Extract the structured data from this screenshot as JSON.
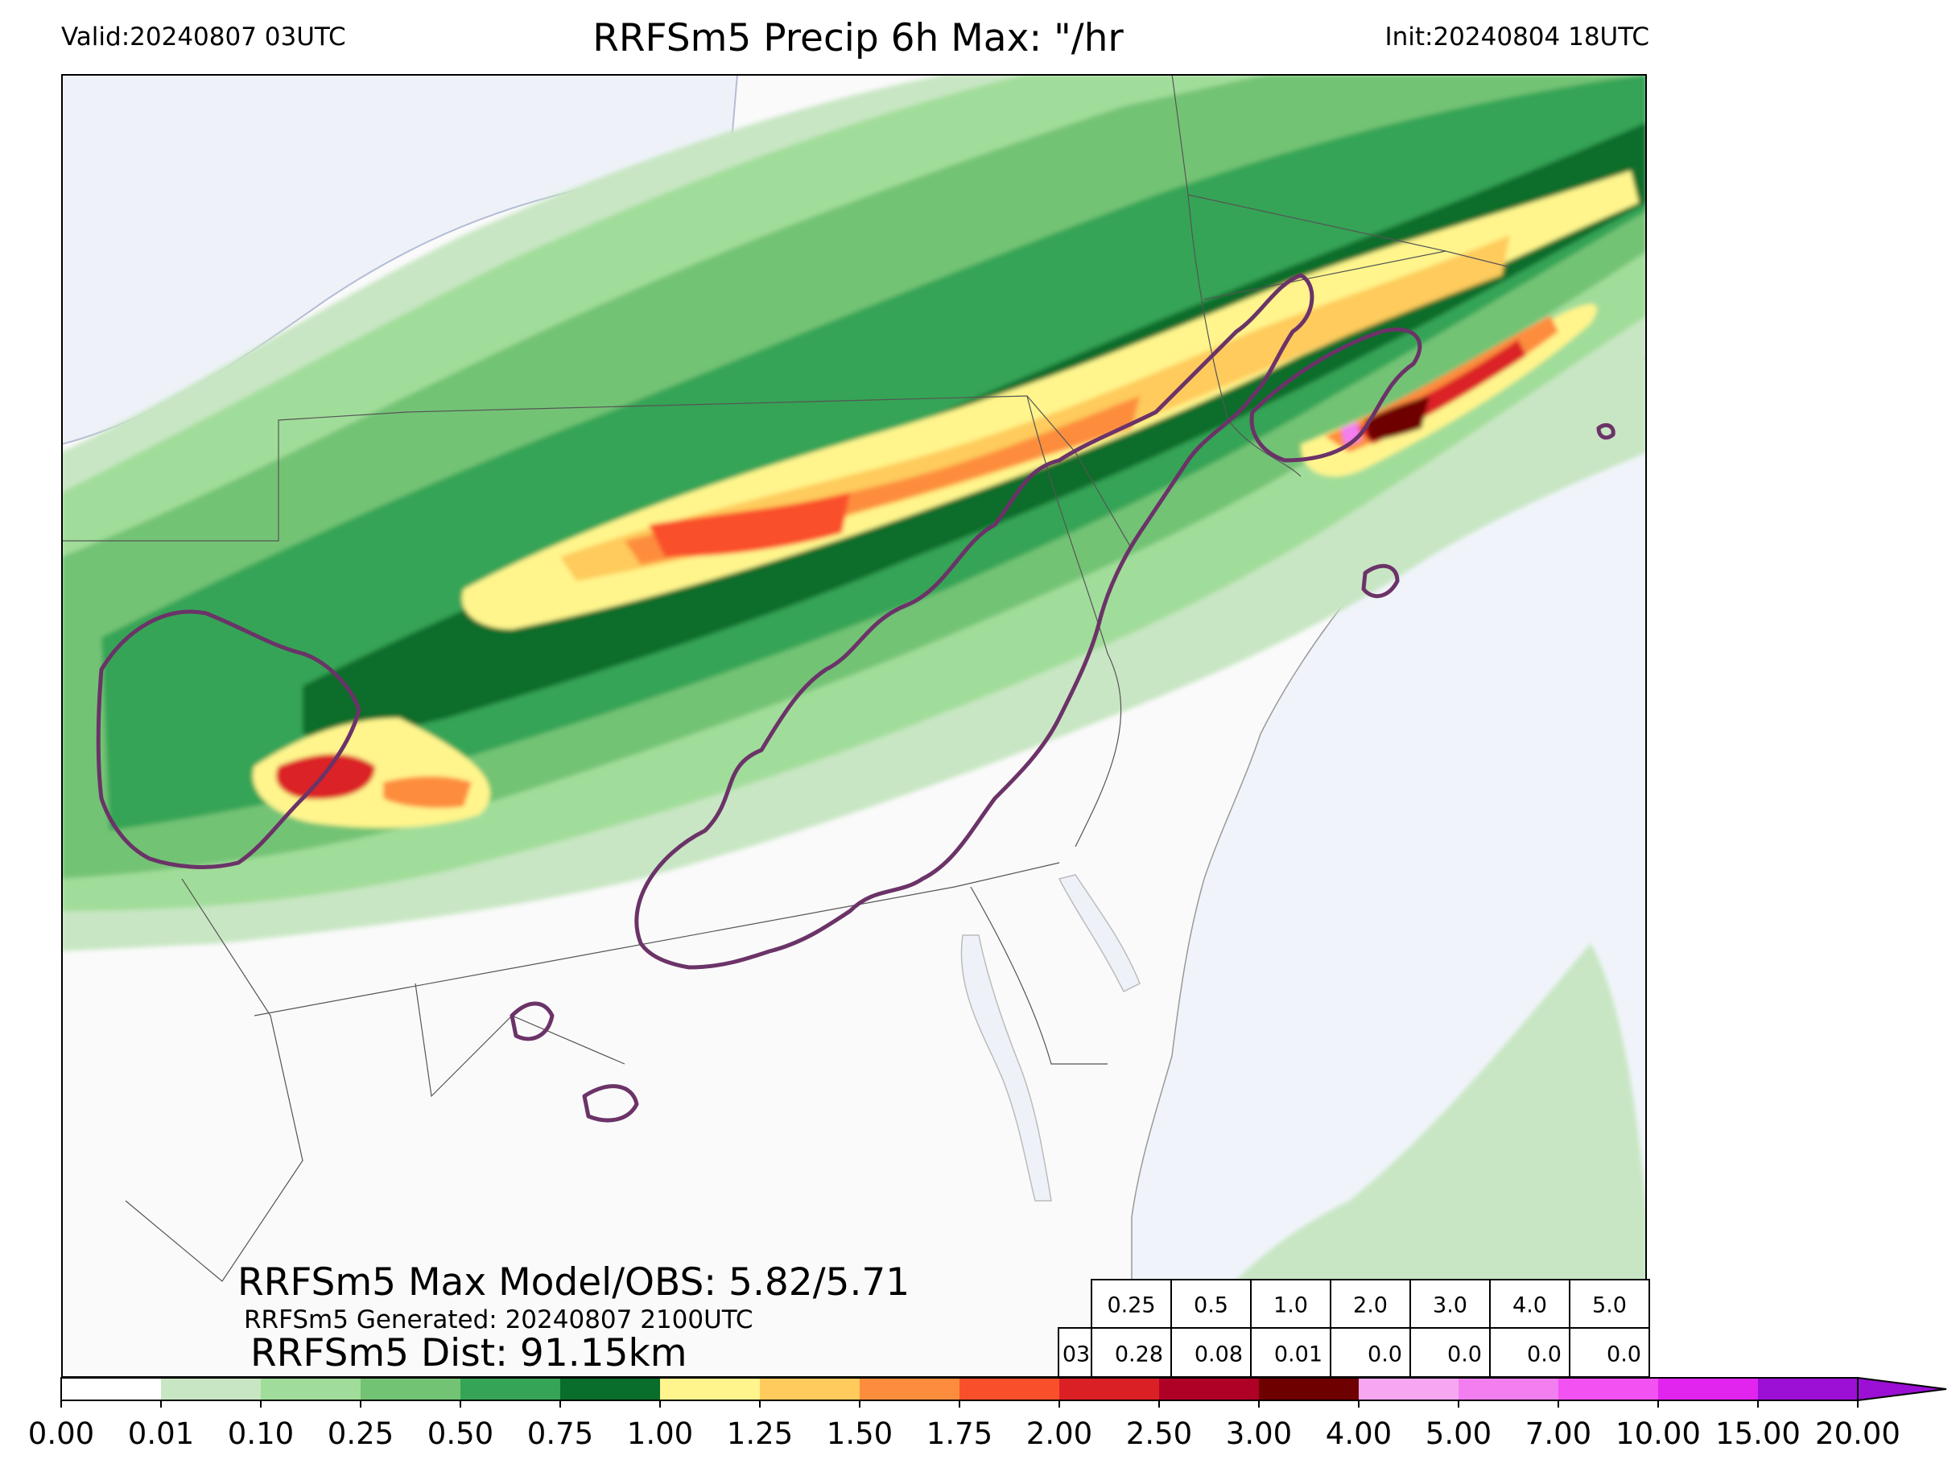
{
  "header": {
    "valid": "Valid:20240807 03UTC",
    "title": "RRFSm5 Precip 6h Max: \"/hr",
    "init": "Init:20240804 18UTC"
  },
  "stats": {
    "max_model_obs": "RRFSm5 Max Model/OBS: 5.82/5.71",
    "generated": "RRFSm5 Generated: 20240807 2100UTC",
    "dist": "RRFSm5 Dist: 91.15km"
  },
  "threshold_table": {
    "row_label": "03",
    "thresholds": [
      "0.25",
      "0.5",
      "1.0",
      "2.0",
      "3.0",
      "4.0",
      "5.0"
    ],
    "values": [
      "0.28",
      "0.08",
      "0.01",
      "0.0",
      "0.0",
      "0.0",
      "0.0"
    ]
  },
  "colorbar": {
    "ticks": [
      "0.00",
      "0.01",
      "0.10",
      "0.25",
      "0.50",
      "0.75",
      "1.00",
      "1.25",
      "1.50",
      "1.75",
      "2.00",
      "2.50",
      "3.00",
      "4.00",
      "5.00",
      "7.00",
      "10.00",
      "15.00",
      "20.00"
    ],
    "colors": [
      "#ffffff",
      "#c8e6c3",
      "#a1dd9a",
      "#73c374",
      "#36a456",
      "#096d2c",
      "#fff58c",
      "#fecb5c",
      "#fd8d3c",
      "#f9502b",
      "#db2025",
      "#af0026",
      "#6e0000",
      "#f7a7f2",
      "#f27ef0",
      "#f152f1",
      "#e224ef",
      "#9b10d4"
    ]
  },
  "palette": {
    "ocean": "#f0f4fa",
    "land": "#fafafa",
    "obs_contour": "#6b3368",
    "border": "#333333"
  }
}
